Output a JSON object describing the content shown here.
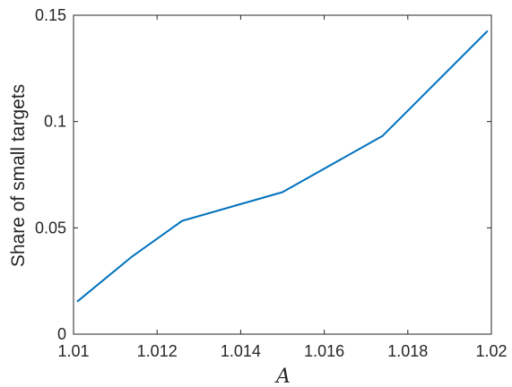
{
  "chart_data": {
    "type": "line",
    "title": "",
    "xlabel": "A",
    "ylabel": "Share of small targets",
    "xlim": [
      1.01,
      1.02
    ],
    "ylim": [
      0,
      0.15
    ],
    "xticks": [
      1.01,
      1.012,
      1.014,
      1.016,
      1.018,
      1.02
    ],
    "xtick_labels": [
      "1.01",
      "1.012",
      "1.014",
      "1.016",
      "1.018",
      "1.02"
    ],
    "yticks": [
      0,
      0.05,
      0.1,
      0.15
    ],
    "ytick_labels": [
      "0",
      "0.05",
      "0.1",
      "0.15"
    ],
    "grid": false,
    "series": [
      {
        "color": "#0072BD",
        "x": [
          1.0101,
          1.0114,
          1.0126,
          1.015,
          1.0174,
          1.0199
        ],
        "y": [
          0.0155,
          0.0365,
          0.0533,
          0.0668,
          0.0933,
          0.1424
        ]
      }
    ]
  }
}
